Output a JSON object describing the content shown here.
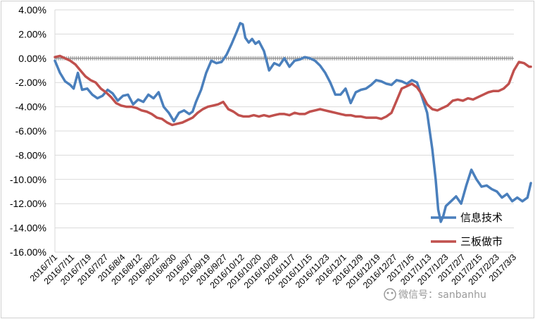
{
  "chart_data": {
    "type": "line",
    "ylim": [
      -0.16,
      0.04
    ],
    "yticks": [
      0.04,
      0.02,
      0.0,
      -0.02,
      -0.04,
      -0.06,
      -0.08,
      -0.1,
      -0.12,
      -0.14,
      -0.16
    ],
    "ytick_labels": [
      "4.00%",
      "2.00%",
      "0.00%",
      "-2.00%",
      "-4.00%",
      "-6.00%",
      "-8.00%",
      "-10.00%",
      "-12.00%",
      "-14.00%",
      "-16.00%"
    ],
    "xtick_labels": [
      "2016/7/1",
      "2016/7/11",
      "2016/7/19",
      "2016/7/27",
      "2016/8/4",
      "2016/8/12",
      "2016/8/22",
      "2016/8/30",
      "2016/9/7",
      "2016/9/19",
      "2016/9/27",
      "2016/10/12",
      "2016/10/20",
      "2016/10/28",
      "2016/11/7",
      "2016/11/15",
      "2016/11/23",
      "2016/12/1",
      "2016/12/9",
      "2016/12/19",
      "2016/12/27",
      "2017/1/5",
      "2017/1/13",
      "2017/1/23",
      "2017/2/7",
      "2017/2/15",
      "2017/2/23",
      "2017/3/3"
    ],
    "grid": "horizontal",
    "legend": "bottom-right",
    "series": [
      {
        "name": "信息技术",
        "color": "#4a7fbc",
        "x": [
          0,
          0.3,
          0.6,
          0.9,
          1.1,
          1.35,
          1.6,
          1.9,
          2.2,
          2.5,
          2.8,
          3.1,
          3.4,
          3.7,
          4.0,
          4.3,
          4.6,
          4.9,
          5.2,
          5.5,
          5.8,
          6.1,
          6.4,
          6.7,
          7.0,
          7.3,
          7.6,
          7.9,
          8.1,
          8.3,
          8.6,
          8.9,
          9.2,
          9.5,
          9.8,
          10.1,
          10.4,
          10.7,
          10.9,
          11.05,
          11.2,
          11.4,
          11.6,
          11.8,
          12.0,
          12.3,
          12.6,
          12.9,
          13.2,
          13.5,
          13.8,
          14.1,
          14.4,
          14.7,
          15.0,
          15.3,
          15.6,
          15.9,
          16.2,
          16.5,
          16.8,
          17.1,
          17.4,
          17.7,
          18.0,
          18.3,
          18.6,
          18.9,
          19.2,
          19.5,
          19.8,
          20.1,
          20.4,
          20.7,
          21.0,
          21.3,
          21.6,
          21.9,
          22.2,
          22.4,
          22.55,
          22.7,
          22.85,
          23.0,
          23.3,
          23.6,
          23.9,
          24.2,
          24.5,
          24.8,
          25.1,
          25.4,
          25.7,
          26.0,
          26.3,
          26.6,
          26.9,
          27.2,
          27.5,
          27.8,
          28.0
        ],
        "values": [
          -0.002,
          -0.012,
          -0.019,
          -0.022,
          -0.025,
          -0.012,
          -0.026,
          -0.025,
          -0.03,
          -0.033,
          -0.031,
          -0.026,
          -0.029,
          -0.035,
          -0.031,
          -0.03,
          -0.038,
          -0.034,
          -0.036,
          -0.03,
          -0.033,
          -0.028,
          -0.04,
          -0.045,
          -0.052,
          -0.045,
          -0.043,
          -0.046,
          -0.044,
          -0.036,
          -0.026,
          -0.012,
          -0.002,
          -0.004,
          -0.003,
          0.003,
          0.012,
          0.022,
          0.029,
          0.028,
          0.017,
          0.013,
          0.016,
          0.012,
          0.014,
          0.006,
          -0.01,
          -0.004,
          -0.006,
          0.0,
          -0.007,
          -0.002,
          -0.001,
          0.001,
          0.0,
          -0.002,
          -0.006,
          -0.012,
          -0.02,
          -0.03,
          -0.03,
          -0.025,
          -0.037,
          -0.028,
          -0.026,
          -0.025,
          -0.022,
          -0.018,
          -0.019,
          -0.021,
          -0.022,
          -0.018,
          -0.019,
          -0.021,
          -0.018,
          -0.02,
          -0.032,
          -0.045,
          -0.075,
          -0.1,
          -0.125,
          -0.135,
          -0.13,
          -0.122,
          -0.118,
          -0.114,
          -0.12,
          -0.105,
          -0.092,
          -0.1,
          -0.106,
          -0.105,
          -0.108,
          -0.11,
          -0.115,
          -0.112,
          -0.118,
          -0.115,
          -0.118,
          -0.115,
          -0.103
        ]
      },
      {
        "name": "三板做市",
        "color": "#c0504d",
        "x": [
          0,
          0.3,
          0.6,
          0.9,
          1.2,
          1.5,
          1.8,
          2.1,
          2.4,
          2.7,
          3.0,
          3.3,
          3.6,
          3.9,
          4.2,
          4.5,
          4.8,
          5.1,
          5.4,
          5.7,
          6.0,
          6.3,
          6.6,
          6.9,
          7.2,
          7.5,
          7.8,
          8.1,
          8.4,
          8.7,
          9.0,
          9.3,
          9.6,
          9.9,
          10.2,
          10.5,
          10.8,
          11.1,
          11.4,
          11.7,
          12.0,
          12.3,
          12.6,
          12.9,
          13.2,
          13.5,
          13.8,
          14.1,
          14.4,
          14.7,
          15.0,
          15.3,
          15.6,
          15.9,
          16.2,
          16.5,
          16.8,
          17.1,
          17.4,
          17.7,
          18.0,
          18.3,
          18.6,
          18.9,
          19.2,
          19.5,
          19.8,
          20.1,
          20.4,
          20.7,
          21.0,
          21.3,
          21.6,
          21.9,
          22.2,
          22.5,
          22.8,
          23.1,
          23.4,
          23.7,
          24.0,
          24.3,
          24.6,
          24.9,
          25.2,
          25.5,
          25.8,
          26.1,
          26.4,
          26.7,
          27.0,
          27.3,
          27.6,
          27.9,
          28.0
        ],
        "values": [
          0.001,
          0.002,
          0.0,
          -0.002,
          -0.005,
          -0.01,
          -0.015,
          -0.018,
          -0.02,
          -0.025,
          -0.028,
          -0.032,
          -0.037,
          -0.039,
          -0.04,
          -0.04,
          -0.041,
          -0.043,
          -0.044,
          -0.046,
          -0.049,
          -0.05,
          -0.053,
          -0.055,
          -0.054,
          -0.053,
          -0.051,
          -0.049,
          -0.045,
          -0.042,
          -0.04,
          -0.039,
          -0.038,
          -0.036,
          -0.042,
          -0.044,
          -0.047,
          -0.048,
          -0.048,
          -0.047,
          -0.048,
          -0.047,
          -0.048,
          -0.047,
          -0.046,
          -0.046,
          -0.047,
          -0.045,
          -0.046,
          -0.046,
          -0.044,
          -0.043,
          -0.042,
          -0.043,
          -0.044,
          -0.045,
          -0.046,
          -0.047,
          -0.047,
          -0.048,
          -0.048,
          -0.049,
          -0.049,
          -0.049,
          -0.05,
          -0.048,
          -0.045,
          -0.035,
          -0.025,
          -0.023,
          -0.021,
          -0.024,
          -0.03,
          -0.038,
          -0.042,
          -0.043,
          -0.041,
          -0.039,
          -0.035,
          -0.034,
          -0.035,
          -0.033,
          -0.034,
          -0.032,
          -0.03,
          -0.028,
          -0.027,
          -0.027,
          -0.025,
          -0.021,
          -0.01,
          -0.003,
          -0.004,
          -0.007,
          -0.007
        ]
      }
    ]
  },
  "watermark": "微信号：sanbanhu"
}
